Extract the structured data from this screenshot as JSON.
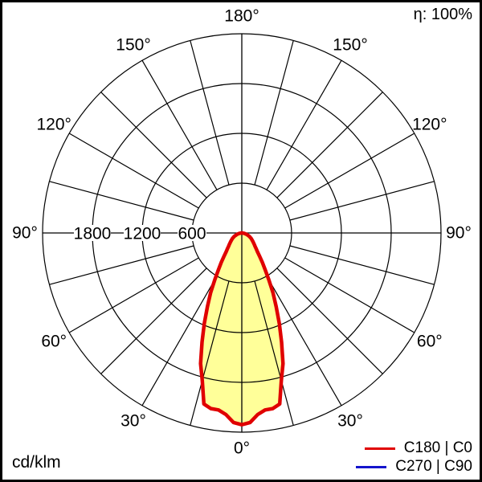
{
  "header": {
    "efficiency": "η: 100%"
  },
  "footer": {
    "unit": "cd/klm"
  },
  "legend": {
    "items": [
      {
        "label": "C180 | C0",
        "color": "#e00000"
      },
      {
        "label": "C270 | C90",
        "color": "#1414cc"
      }
    ]
  },
  "colors": {
    "grid": "#000000",
    "background": "#ffffff",
    "beam_fill": "#ffff99",
    "curve_c0": "#e00000",
    "curve_c90": "#1414cc"
  },
  "chart_data": {
    "type": "polar",
    "subtype": "luminous-intensity-distribution",
    "unit": "cd/klm",
    "efficiency_label": "η: 100%",
    "angle_grid_step_deg": 15,
    "angle_labels_deg": [
      0,
      30,
      60,
      90,
      120,
      150,
      180
    ],
    "radial_ticks": [
      600,
      1200,
      1800
    ],
    "radial_max": 2400,
    "grid_on": true,
    "legend_position": "bottom-right",
    "series": [
      {
        "name": "C180 | C0",
        "color": "#e00000",
        "fill": "#ffff99",
        "points_deg_cd": [
          [
            0,
            2310
          ],
          [
            2.5,
            2285
          ],
          [
            5,
            2195
          ],
          [
            7.5,
            2150
          ],
          [
            10,
            2148
          ],
          [
            12.5,
            2110
          ],
          [
            15,
            1840
          ],
          [
            17.5,
            1650
          ],
          [
            20,
            1400
          ],
          [
            22.5,
            1180
          ],
          [
            25,
            980
          ],
          [
            27.5,
            815
          ],
          [
            30,
            650
          ],
          [
            32.5,
            525
          ],
          [
            35,
            430
          ],
          [
            37.5,
            350
          ],
          [
            40,
            290
          ],
          [
            42.5,
            255
          ],
          [
            45,
            225
          ],
          [
            47.5,
            203
          ],
          [
            50,
            185
          ],
          [
            52.5,
            168
          ],
          [
            55,
            152
          ],
          [
            57.5,
            140
          ],
          [
            60,
            128
          ],
          [
            62.5,
            115
          ],
          [
            65,
            103
          ],
          [
            67.5,
            90
          ],
          [
            70,
            75
          ],
          [
            72.5,
            62
          ],
          [
            75,
            50
          ],
          [
            77.5,
            40
          ],
          [
            80,
            30
          ],
          [
            82.5,
            20
          ],
          [
            85,
            12
          ],
          [
            87.5,
            5
          ],
          [
            90,
            0
          ]
        ]
      },
      {
        "name": "C270 | C90",
        "color": "#1414cc",
        "fill": null,
        "coincident_with": "C180 | C0"
      }
    ]
  }
}
